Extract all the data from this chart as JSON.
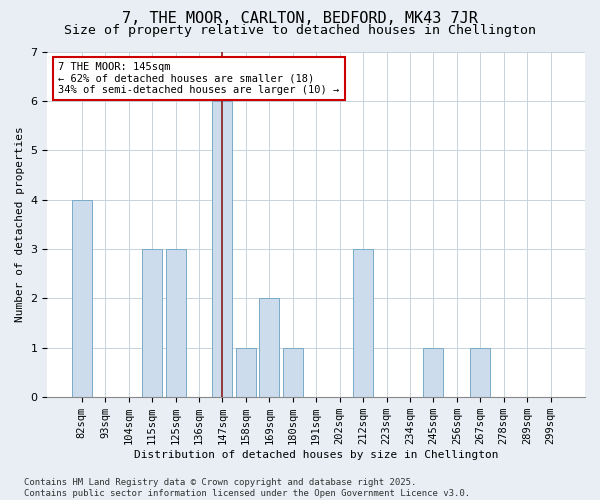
{
  "title": "7, THE MOOR, CARLTON, BEDFORD, MK43 7JR",
  "subtitle": "Size of property relative to detached houses in Chellington",
  "xlabel": "Distribution of detached houses by size in Chellington",
  "ylabel": "Number of detached properties",
  "categories": [
    "82sqm",
    "93sqm",
    "104sqm",
    "115sqm",
    "125sqm",
    "136sqm",
    "147sqm",
    "158sqm",
    "169sqm",
    "180sqm",
    "191sqm",
    "202sqm",
    "212sqm",
    "223sqm",
    "234sqm",
    "245sqm",
    "256sqm",
    "267sqm",
    "278sqm",
    "289sqm",
    "299sqm"
  ],
  "values": [
    4,
    0,
    0,
    3,
    3,
    0,
    6,
    1,
    2,
    1,
    0,
    0,
    3,
    0,
    0,
    1,
    0,
    1,
    0,
    0,
    0
  ],
  "bar_color": "#ccdcec",
  "bar_edgecolor": "#7aaac8",
  "vline_x_index": 6,
  "vline_color": "#8b1a1a",
  "annotation_text": "7 THE MOOR: 145sqm\n← 62% of detached houses are smaller (18)\n34% of semi-detached houses are larger (10) →",
  "annotation_box_edgecolor": "#cc0000",
  "annotation_box_facecolor": "#ffffff",
  "ylim": [
    0,
    7
  ],
  "yticks": [
    0,
    1,
    2,
    3,
    4,
    5,
    6,
    7
  ],
  "footnote": "Contains HM Land Registry data © Crown copyright and database right 2025.\nContains public sector information licensed under the Open Government Licence v3.0.",
  "bg_color": "#e8eef4",
  "plot_bg_color": "#ffffff",
  "title_fontsize": 11,
  "subtitle_fontsize": 9.5,
  "axis_label_fontsize": 8,
  "tick_fontsize": 7.5,
  "footnote_fontsize": 6.5
}
